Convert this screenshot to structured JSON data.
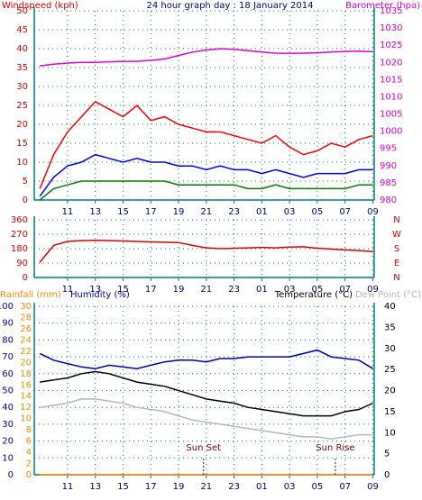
{
  "chart_data": [
    {
      "type": "line",
      "title": "24 hour graph day : 18 January 2014",
      "y_label": "Windspeed (kph)",
      "y2_label": "Barometer (hpa)",
      "x": [
        9,
        10,
        11,
        12,
        13,
        14,
        15,
        16,
        17,
        18,
        19,
        20,
        21,
        22,
        23,
        24,
        25,
        26,
        27,
        28,
        29,
        30,
        31,
        32,
        33
      ],
      "xlim": [
        8.6,
        33.1
      ],
      "xticks": [
        11,
        13,
        15,
        17,
        19,
        21,
        23,
        {
          "value": 25,
          "label": "01"
        },
        {
          "value": 27,
          "label": "03"
        },
        {
          "value": 29,
          "label": "05"
        },
        {
          "value": 31,
          "label": "07"
        },
        {
          "value": 33,
          "label": "09"
        }
      ],
      "ylim": [
        0,
        50
      ],
      "yticks": [
        0,
        5,
        10,
        15,
        20,
        25,
        30,
        35,
        40,
        45,
        50
      ],
      "y2lim": [
        980,
        1035
      ],
      "y2ticks": [
        980,
        985,
        990,
        995,
        1000,
        1005,
        1010,
        1015,
        1020,
        1025,
        1030,
        1035
      ],
      "grid": true,
      "series": [
        {
          "color": "#ff0000",
          "values": [
            3,
            12,
            18,
            22,
            26,
            24,
            22,
            25,
            21,
            22,
            20,
            19,
            18,
            18,
            17,
            16,
            15,
            17,
            14,
            12,
            13,
            15,
            14,
            16,
            17
          ]
        },
        {
          "color": "#0000ff",
          "values": [
            1,
            6,
            9,
            10,
            12,
            11,
            10,
            11,
            10,
            10,
            9,
            9,
            8,
            9,
            8,
            8,
            7,
            8,
            7,
            6,
            7,
            7,
            7,
            8,
            8
          ]
        },
        {
          "color": "#008000",
          "values": [
            0,
            3,
            4,
            5,
            5,
            5,
            5,
            5,
            5,
            5,
            4,
            4,
            4,
            4,
            4,
            3,
            3,
            4,
            3,
            3,
            3,
            3,
            3,
            4,
            4
          ]
        },
        {
          "color": "#e000e0",
          "axis": "y2",
          "values": [
            1019,
            1019.5,
            1019.8,
            1020,
            1020,
            1020.2,
            1020.3,
            1020.3,
            1020.6,
            1021,
            1022,
            1023,
            1023.6,
            1024,
            1023.8,
            1023.4,
            1023,
            1022.7,
            1022.6,
            1022.7,
            1022.8,
            1023,
            1023.2,
            1023.3,
            1023.1
          ]
        }
      ]
    },
    {
      "type": "line",
      "x": [
        9,
        10,
        11,
        12,
        13,
        14,
        15,
        16,
        17,
        18,
        19,
        20,
        21,
        22,
        23,
        24,
        25,
        26,
        27,
        28,
        29,
        30,
        31,
        32,
        33
      ],
      "xlim": [
        8.6,
        33.1
      ],
      "xticks": [
        11,
        13,
        15,
        17,
        19,
        21,
        23,
        {
          "value": 25,
          "label": "01"
        },
        {
          "value": 27,
          "label": "03"
        },
        {
          "value": 29,
          "label": "05"
        },
        {
          "value": 31,
          "label": "07"
        },
        {
          "value": 33,
          "label": "09"
        }
      ],
      "ylim": [
        0,
        360
      ],
      "yticks": [
        0,
        90,
        180,
        270,
        360
      ],
      "y2lim": [
        0,
        360
      ],
      "y2ticks": [
        {
          "value": 0,
          "label": "N"
        },
        {
          "value": 90,
          "label": "E"
        },
        {
          "value": 180,
          "label": "S"
        },
        {
          "value": 270,
          "label": "W"
        },
        {
          "value": 360,
          "label": "N"
        }
      ],
      "grid": true,
      "series": [
        {
          "color": "#e00000",
          "values": [
            95,
            200,
            225,
            230,
            232,
            230,
            228,
            225,
            222,
            220,
            218,
            200,
            185,
            180,
            182,
            185,
            188,
            185,
            190,
            192,
            182,
            178,
            172,
            168,
            162
          ]
        }
      ]
    },
    {
      "type": "line",
      "x": [
        9,
        10,
        11,
        12,
        13,
        14,
        15,
        16,
        17,
        18,
        19,
        20,
        21,
        22,
        23,
        24,
        25,
        26,
        27,
        28,
        29,
        30,
        31,
        32,
        33
      ],
      "xlim": [
        8.6,
        33.1
      ],
      "xticks": [
        11,
        13,
        15,
        17,
        19,
        21,
        23,
        {
          "value": 25,
          "label": "01"
        },
        {
          "value": 27,
          "label": "03"
        },
        {
          "value": 29,
          "label": "05"
        },
        {
          "value": 31,
          "label": "07"
        },
        {
          "value": 33,
          "label": "09"
        }
      ],
      "ylim": [
        0,
        100
      ],
      "yticks": [
        0,
        10,
        20,
        30,
        40,
        50,
        60,
        70,
        80,
        90,
        100
      ],
      "y2lim": [
        0,
        40
      ],
      "y2ticks": [
        0,
        5,
        10,
        15,
        20,
        25,
        30,
        35,
        40
      ],
      "y3lim": [
        0,
        30
      ],
      "y3ticks": [
        0,
        2,
        4,
        6,
        8,
        10,
        12,
        14,
        16,
        18,
        20,
        22,
        24,
        26,
        28,
        30
      ],
      "grid": true,
      "series": [
        {
          "name": "Rainfall (mm)",
          "color": "#ff8c00",
          "axis": "y3",
          "values": [
            0,
            0,
            0,
            0,
            0,
            0,
            0,
            0,
            0,
            0,
            0,
            0,
            0,
            0,
            0,
            0,
            0,
            0,
            0,
            0,
            0,
            0,
            0,
            0,
            0
          ]
        },
        {
          "name": "Humidity (%)",
          "color": "#0000c0",
          "values": [
            72,
            68,
            66,
            64,
            63,
            65,
            64,
            63,
            65,
            67,
            68,
            68,
            67,
            69,
            69,
            70,
            70,
            70,
            70,
            72,
            74,
            70,
            69,
            68,
            63
          ]
        },
        {
          "name": "Temperature (°C)",
          "color": "#000000",
          "axis": "y2",
          "values": [
            22,
            22.5,
            23,
            24,
            24.5,
            24,
            23,
            22,
            21.5,
            21,
            20,
            19,
            18,
            17.5,
            17,
            16,
            15.5,
            15,
            14.5,
            14,
            14,
            14,
            15,
            15.5,
            17
          ]
        },
        {
          "name": "Dew Point (°C)",
          "color": "#b8b8b8",
          "axis": "y2",
          "values": [
            16,
            16.5,
            17,
            18,
            18,
            17.5,
            17,
            16,
            15.5,
            15,
            14,
            13,
            12.5,
            12,
            11.5,
            11,
            10.5,
            10,
            9.5,
            9,
            9,
            8.5,
            9,
            9.5,
            9.5
          ]
        }
      ],
      "annotations": [
        {
          "text": "Sun Set",
          "x": 20.8
        },
        {
          "text": "Sun Rise",
          "x": 30.3
        }
      ]
    }
  ]
}
